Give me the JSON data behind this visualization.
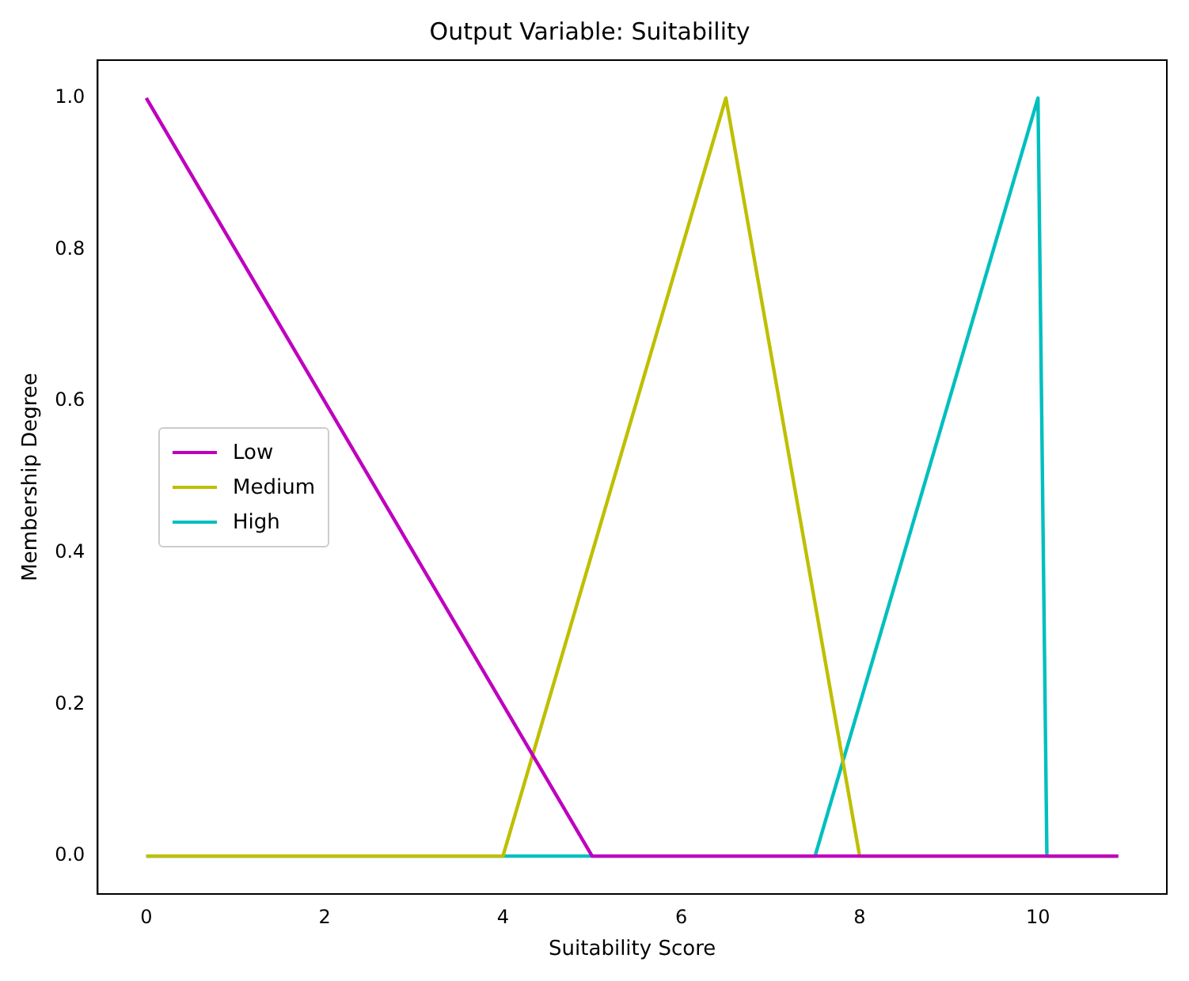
{
  "chart_data": {
    "type": "line",
    "title": "Output Variable: Suitability",
    "xlabel": "Suitability Score",
    "ylabel": "Membership Degree",
    "xlim": [
      -0.545,
      11.445
    ],
    "xticks": [
      0,
      2,
      4,
      6,
      8,
      10
    ],
    "ylim": [
      -0.05,
      1.05
    ],
    "yticks": [
      {
        "value": 0,
        "label": "0.0"
      },
      {
        "value": 0.2,
        "label": "0.2"
      },
      {
        "value": 0.4,
        "label": "0.4"
      },
      {
        "value": 0.6,
        "label": "0.6"
      },
      {
        "value": 0.8,
        "label": "0.8"
      },
      {
        "value": 1.0,
        "label": "1.0"
      }
    ],
    "grid": false,
    "legend": "center left",
    "marker": "none",
    "line_style": "solid",
    "series": [
      {
        "name": "Low",
        "color": "#bf00bf",
        "x": [
          0,
          5,
          10.9
        ],
        "values": [
          1,
          0,
          0
        ]
      },
      {
        "name": "Medium",
        "color": "#bfbf00",
        "x": [
          0,
          4,
          6.5,
          8,
          10.9
        ],
        "values": [
          0,
          0,
          1,
          0,
          0
        ]
      },
      {
        "name": "High",
        "color": "#00bfbf",
        "x": [
          0,
          7.5,
          10,
          10.1,
          10.9
        ],
        "values": [
          0,
          0,
          1,
          0,
          0
        ]
      }
    ]
  }
}
